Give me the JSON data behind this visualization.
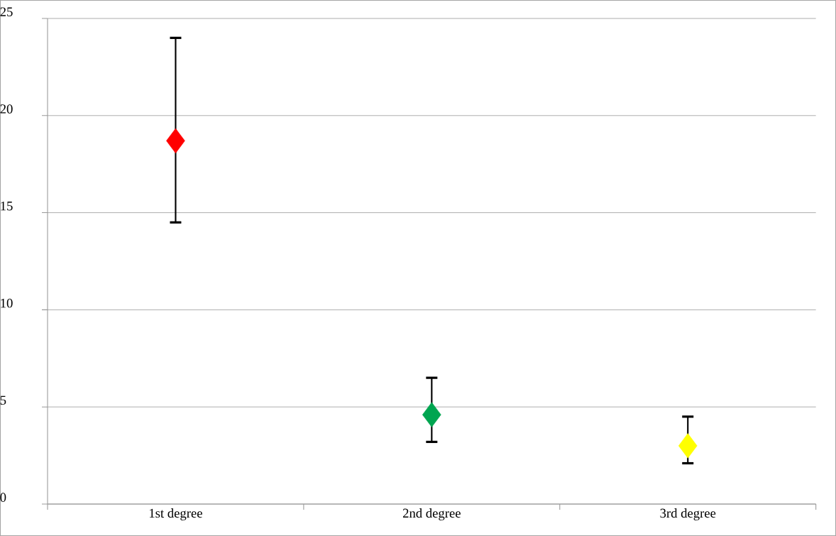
{
  "chart_data": {
    "type": "scatter",
    "categories": [
      "1st degree",
      "2nd degree",
      "3rd degree"
    ],
    "values": [
      18.7,
      4.6,
      3.0
    ],
    "errors": [
      [
        14.5,
        24.0
      ],
      [
        3.2,
        6.5
      ],
      [
        2.1,
        4.5
      ]
    ],
    "colors": [
      "#ff0000",
      "#00a550",
      "#ffff00"
    ],
    "marker": "diamond",
    "ylim": [
      0,
      25
    ],
    "yticks": [
      0,
      5,
      10,
      15,
      20,
      25
    ],
    "grid": "y"
  }
}
